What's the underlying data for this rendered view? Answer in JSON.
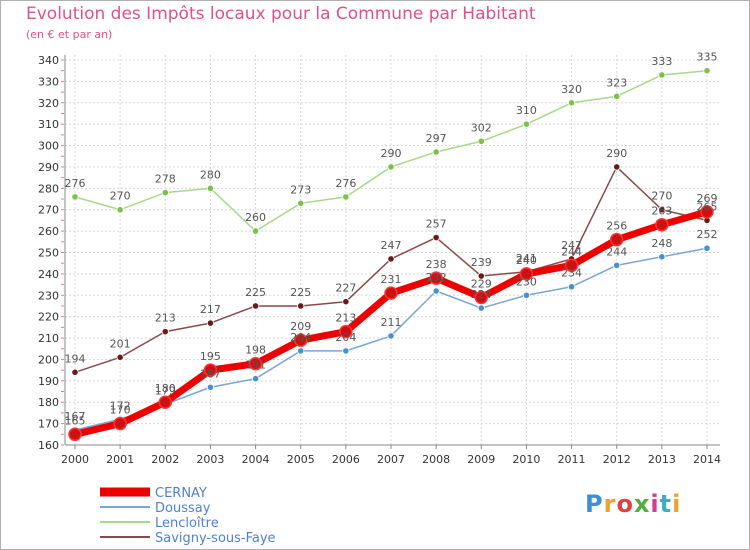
{
  "header": {
    "title": "Evolution des Impôts locaux pour la Commune par Habitant",
    "subtitle": "(en € et par an)"
  },
  "logo": {
    "text": "Proxiti"
  },
  "chart_data": {
    "type": "line",
    "title": "Evolution des Impôts locaux pour la Commune par Habitant",
    "subtitle": "(en € et par an)",
    "xlabel": "",
    "ylabel": "",
    "x": [
      "2000",
      "2001",
      "2002",
      "2003",
      "2004",
      "2005",
      "2006",
      "2007",
      "2008",
      "2009",
      "2010",
      "2011",
      "2012",
      "2013",
      "2014"
    ],
    "ylim": [
      160,
      340
    ],
    "yticks": [
      160,
      170,
      180,
      190,
      200,
      210,
      220,
      230,
      240,
      250,
      260,
      270,
      280,
      290,
      300,
      310,
      320,
      330,
      340
    ],
    "grid": true,
    "legend_position": "bottom-left",
    "series": [
      {
        "name": "CERNAY",
        "color": "#ee0000",
        "marker": "#cc1111",
        "width": 7,
        "values": [
          165,
          170,
          180,
          195,
          198,
          209,
          213,
          231,
          238,
          229,
          240,
          244,
          256,
          263,
          269
        ],
        "labels": [
          "165",
          "170",
          "180",
          "195",
          "198",
          "209",
          "213",
          "231",
          "238",
          "229",
          "240",
          "244",
          "256",
          "263",
          "269"
        ]
      },
      {
        "name": "Doussay",
        "color": "#7aa6d6",
        "marker": "#4a90d0",
        "width": 1.5,
        "values": [
          167,
          172,
          179,
          187,
          191,
          204,
          204,
          211,
          232,
          224,
          230,
          234,
          244,
          248,
          252
        ],
        "labels": [
          "167",
          "172",
          "179",
          "187",
          "191",
          "204",
          "204",
          "211",
          "232",
          "224",
          "230",
          "234",
          "244",
          "248",
          "252"
        ]
      },
      {
        "name": "Lencloître",
        "color": "#a8d88a",
        "marker": "#7cc24a",
        "width": 1.5,
        "values": [
          276,
          270,
          278,
          280,
          260,
          273,
          276,
          290,
          297,
          302,
          310,
          320,
          323,
          333,
          335
        ],
        "labels": [
          "276",
          "270",
          "278",
          "280",
          "260",
          "273",
          "276",
          "290",
          "297",
          "302",
          "310",
          "320",
          "323",
          "333",
          "335"
        ]
      },
      {
        "name": "Savigny-sous-Faye",
        "color": "#8a4a4a",
        "marker": "#6a1a1a",
        "width": 1.5,
        "values": [
          194,
          201,
          213,
          217,
          225,
          225,
          227,
          247,
          257,
          239,
          241,
          247,
          290,
          270,
          265
        ],
        "labels": [
          "194",
          "201",
          "213",
          "217",
          "225",
          "225",
          "227",
          "247",
          "257",
          "239",
          "241",
          "247",
          "290",
          "270",
          "265"
        ]
      }
    ]
  }
}
